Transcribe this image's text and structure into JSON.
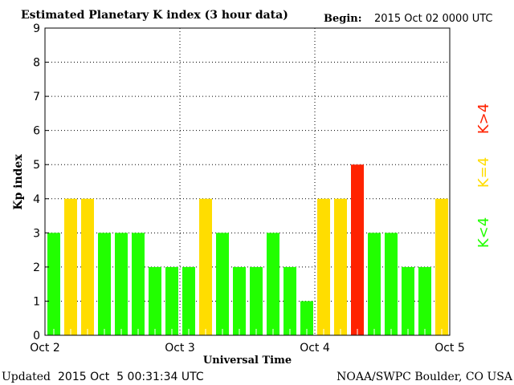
{
  "header": {
    "title": "Estimated Planetary K index (3 hour data)",
    "begin_label": "Begin:",
    "begin_value": "2015 Oct 02 0000 UTC"
  },
  "footer": {
    "updated_label": "Updated",
    "updated_value": "2015 Oct  5 00:31:34 UTC",
    "credit": "NOAA/SWPC Boulder, CO USA"
  },
  "legend": [
    {
      "label": "K<4",
      "color": "#22ff00"
    },
    {
      "label": "K=4",
      "color": "#ffdd00"
    },
    {
      "label": "K>4",
      "color": "#ff2200"
    }
  ],
  "chart_data": {
    "type": "bar",
    "title": "Estimated Planetary K index (3 hour data)",
    "xlabel": "Universal Time",
    "ylabel": "Kp index",
    "ylim": [
      0,
      9
    ],
    "yticks": [
      "0",
      "1",
      "2",
      "3",
      "4",
      "5",
      "6",
      "7",
      "8",
      "9"
    ],
    "xticks": [
      "Oct 2",
      "Oct 3",
      "Oct 4",
      "Oct 5"
    ],
    "interval_hours": 3,
    "values": [
      3,
      4,
      4,
      3,
      3,
      3,
      2,
      2,
      2,
      4,
      3,
      2,
      2,
      3,
      2,
      1,
      4,
      4,
      5,
      3,
      3,
      2,
      2,
      4
    ],
    "colors": {
      "low": "#22ff00",
      "equal": "#ffdd00",
      "high": "#ff2200"
    }
  }
}
